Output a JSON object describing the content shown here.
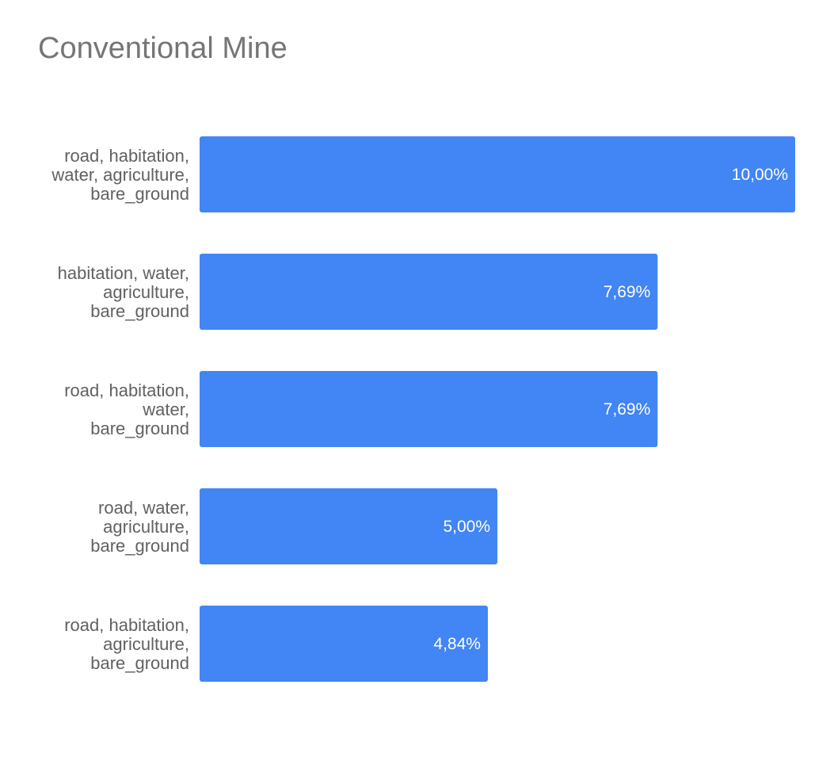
{
  "chart_data": {
    "type": "bar",
    "orientation": "horizontal",
    "title": "Conventional Mine",
    "xlabel": "",
    "ylabel": "",
    "grid": false,
    "legend": "none",
    "xlim": [
      0,
      10
    ],
    "categories": [
      [
        "road, habitation,",
        "water, agriculture,",
        "bare_ground"
      ],
      [
        "habitation, water,",
        "agriculture,",
        "bare_ground"
      ],
      [
        "road, habitation,",
        "water,",
        "bare_ground"
      ],
      [
        "road, water,",
        "agriculture,",
        "bare_ground"
      ],
      [
        "road, habitation,",
        "agriculture,",
        "bare_ground"
      ]
    ],
    "values": [
      10.0,
      7.69,
      7.69,
      5.0,
      4.84
    ],
    "data_labels": [
      "10,00%",
      "7,69%",
      "7,69%",
      "5,00%",
      "4,84%"
    ],
    "colors": {
      "bar": "#4285f4",
      "title": "#757575",
      "label": "#616161",
      "data_label": "#ffffff"
    }
  }
}
